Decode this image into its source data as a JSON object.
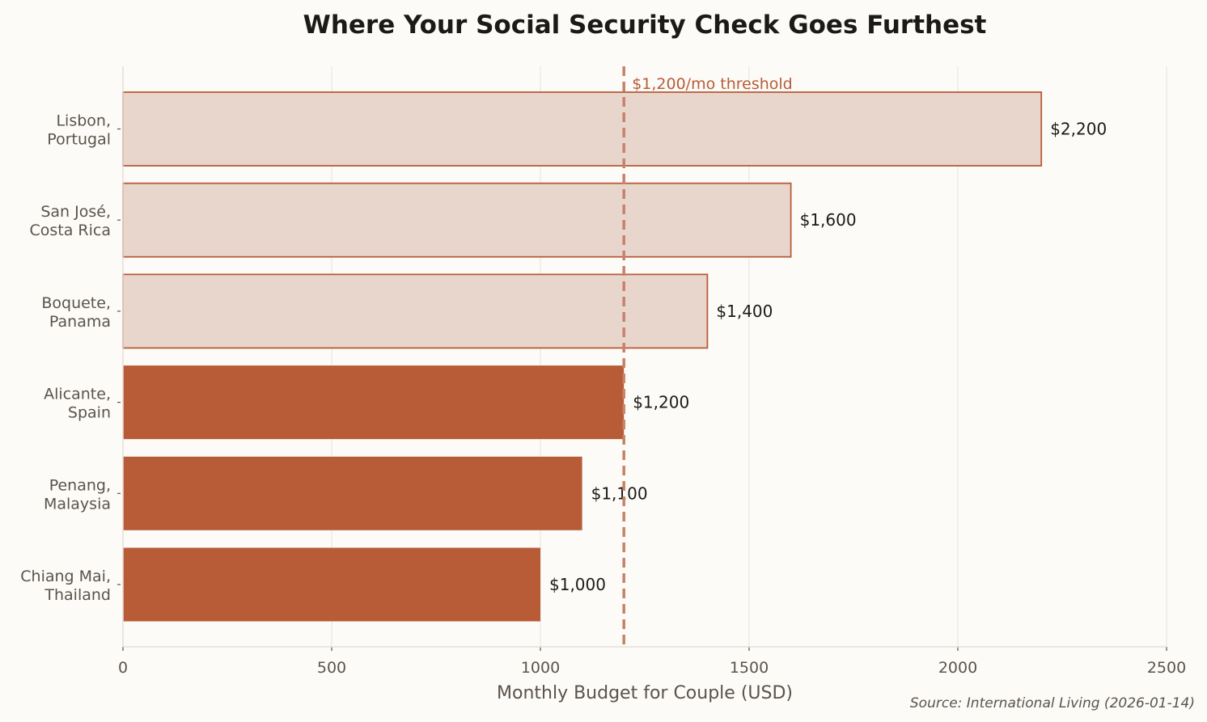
{
  "chart_data": {
    "type": "bar",
    "orientation": "horizontal",
    "title": "Where Your Social Security Check Goes Furthest",
    "xlabel": "Monthly Budget for Couple (USD)",
    "ylabel": "",
    "xlim": [
      0,
      2500
    ],
    "xticks": [
      0,
      500,
      1000,
      1500,
      2000,
      2500
    ],
    "grid": "vertical",
    "categories": [
      [
        "Lisbon,",
        "Portugal"
      ],
      [
        "San José,",
        "Costa Rica"
      ],
      [
        "Boquete,",
        "Panama"
      ],
      [
        "Alicante,",
        "Spain"
      ],
      [
        "Penang,",
        "Malaysia"
      ],
      [
        "Chiang Mai,",
        "Thailand"
      ]
    ],
    "values": [
      2200,
      1600,
      1400,
      1200,
      1100,
      1000
    ],
    "value_labels": [
      "$2,200",
      "$1,600",
      "$1,400",
      "$1,200",
      "$1,100",
      "$1,000"
    ],
    "threshold": {
      "value": 1200,
      "label": "$1,200/mo threshold"
    },
    "source": "Source: International Living (2026-01-14)",
    "colors": {
      "within_budget": "#b85c37",
      "above_budget_fill": "#e8d6cc",
      "above_budget_edge": "#b85c37",
      "threshold_line": "#c8826a",
      "background": "#fcfbf8"
    }
  }
}
